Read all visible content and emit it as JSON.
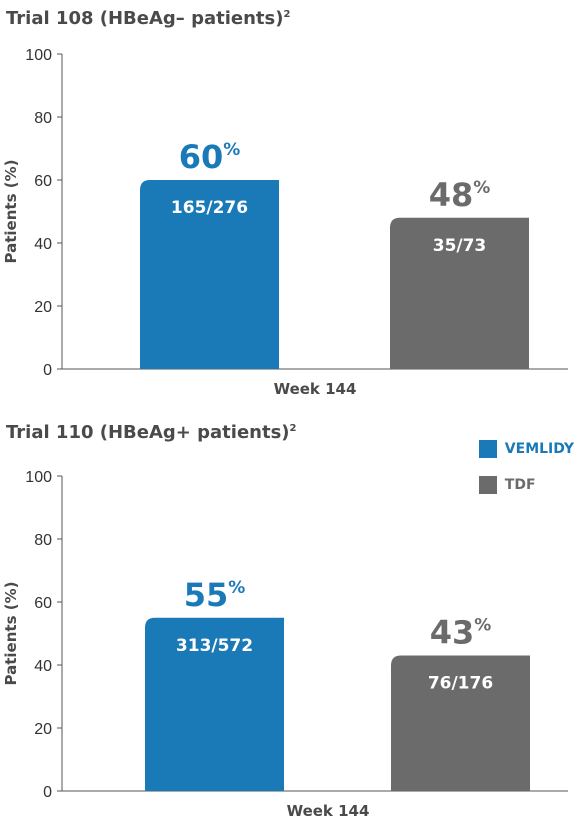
{
  "colors": {
    "vemlidy": "#1a7ab8",
    "tdf": "#6b6b6b",
    "axis": "#555555",
    "text": "#4a4a4a"
  },
  "charts": [
    {
      "title": "Trial 108 (HBeAg– patients)",
      "title_sup": "2"
    },
    {
      "title": "Trial 110 (HBeAg+ patients)",
      "title_sup": "2"
    }
  ],
  "legend": [
    {
      "label": "VEMLIDY",
      "color": "#1a7ab8",
      "text_color": "#1a7ab8"
    },
    {
      "label": "TDF",
      "color": "#6b6b6b",
      "text_color": "#6b6b6b"
    }
  ],
  "chart_data": [
    {
      "type": "bar",
      "title": "Trial 108 (HBeAg– patients)",
      "xlabel": "Week 144",
      "ylabel": "Patients (%)",
      "ylim": [
        0,
        100
      ],
      "yticks": [
        0,
        20,
        40,
        60,
        80,
        100
      ],
      "categories": [
        "VEMLIDY",
        "TDF"
      ],
      "values": [
        60,
        48
      ],
      "pct_labels": [
        "60",
        "48"
      ],
      "pct_sign": "%",
      "bar_labels": [
        "165/276",
        "35/73"
      ],
      "colors": [
        "#1a7ab8",
        "#6b6b6b"
      ]
    },
    {
      "type": "bar",
      "title": "Trial 110 (HBeAg+ patients)",
      "xlabel": "Week 144",
      "ylabel": "Patients (%)",
      "ylim": [
        0,
        100
      ],
      "yticks": [
        0,
        20,
        40,
        60,
        80,
        100
      ],
      "categories": [
        "VEMLIDY",
        "TDF"
      ],
      "values": [
        55,
        43
      ],
      "pct_labels": [
        "55",
        "43"
      ],
      "pct_sign": "%",
      "bar_labels": [
        "313/572",
        "76/176"
      ],
      "colors": [
        "#1a7ab8",
        "#6b6b6b"
      ]
    }
  ]
}
